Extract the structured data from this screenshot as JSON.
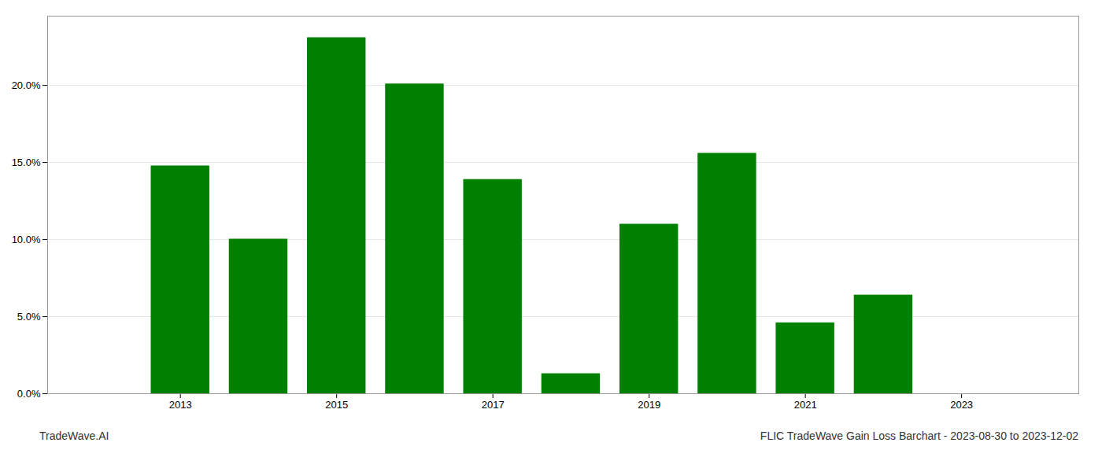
{
  "chart_data": {
    "type": "bar",
    "x": [
      2013,
      2014,
      2015,
      2016,
      2017,
      2018,
      2019,
      2020,
      2021,
      2022
    ],
    "values": [
      0.1478,
      0.1003,
      0.231,
      0.201,
      0.139,
      0.013,
      0.11,
      0.156,
      0.046,
      0.064
    ],
    "color": "#008000",
    "xlim": [
      2011.3,
      2024.5
    ],
    "xticks": [
      2013,
      2015,
      2017,
      2019,
      2021,
      2023
    ],
    "ylim": [
      0,
      0.245
    ],
    "yticks": [
      {
        "value": 0.0,
        "label": "0.0%"
      },
      {
        "value": 0.05,
        "label": "5.0%"
      },
      {
        "value": 0.1,
        "label": "10.0%"
      },
      {
        "value": 0.15,
        "label": "15.0%"
      },
      {
        "value": 0.2,
        "label": "20.0%"
      }
    ],
    "grid": true,
    "annotations": [
      "TradeWave.AI",
      "FLIC TradeWave Gain Loss Barchart - 2023-08-30 to 2023-12-02"
    ]
  }
}
